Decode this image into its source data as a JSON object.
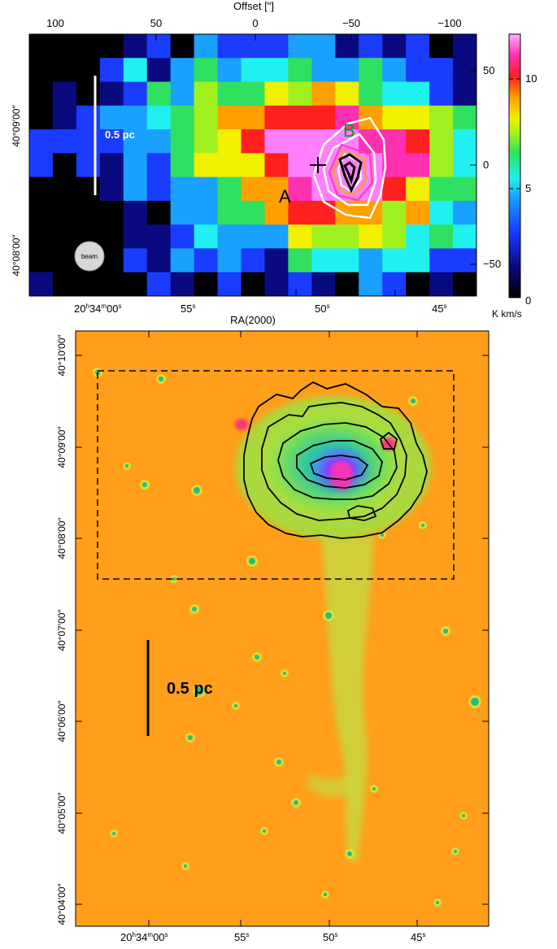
{
  "top_panel": {
    "top_axis_label": "Offset [\"]",
    "top_ticks": [
      "100",
      "50",
      "0",
      "−50",
      "−100"
    ],
    "right_ticks": [
      "50",
      "0",
      "−50"
    ],
    "left_ticks": [
      "40°09′00″",
      "40°08′00″"
    ],
    "bottom_tick_main": "20",
    "bottom_tick_h": "h",
    "bottom_tick_34": "34",
    "bottom_tick_m": "m",
    "bottom_tick_00": "00",
    "bottom_tick_s": "s",
    "bottom_ticks_short": [
      {
        "num": "55",
        "sup": "s"
      },
      {
        "num": "50",
        "sup": "s"
      },
      {
        "num": "45",
        "sup": "s"
      }
    ],
    "xlabel": "RA(2000)",
    "scalebar_label": "0.5 pc",
    "beam_label": "beam",
    "marker_a": "A",
    "marker_b": "B",
    "colorbar_ticks": [
      "10",
      "5",
      "0"
    ],
    "colorbar_unit": "K km/s",
    "colormap": [
      "#000000",
      "#0a0a80",
      "#1a3cff",
      "#1aa0ff",
      "#20f0f0",
      "#30e060",
      "#a0f020",
      "#f0f000",
      "#ffa000",
      "#ff2020",
      "#ff30b0",
      "#ff80ff"
    ]
  },
  "bottom_panel": {
    "left_ticks": [
      "40°10′00″",
      "40°09′00″",
      "40°08′00″",
      "40°07′00″",
      "40°06′00″",
      "40°05′00″",
      "40°04′00″"
    ],
    "bottom_tick_main": "20",
    "bottom_tick_h": "h",
    "bottom_tick_34": "34",
    "bottom_tick_m": "m",
    "bottom_tick_00": "00",
    "bottom_tick_s": "s",
    "bottom_ticks_short": [
      {
        "num": "55",
        "sup": "s"
      },
      {
        "num": "50",
        "sup": "s"
      },
      {
        "num": "45",
        "sup": "s"
      }
    ],
    "scalebar_label": "0.5 pc",
    "background_color": "#ff9a14",
    "nebula_color": "#b8e040",
    "core_color": "#3080ff"
  }
}
